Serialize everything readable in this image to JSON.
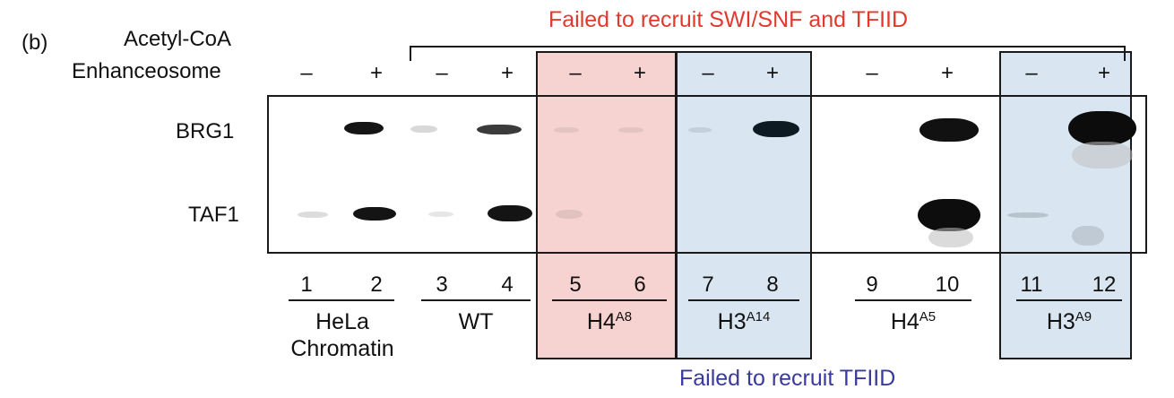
{
  "panel_label": "(b)",
  "row_labels": {
    "acetyl": "Acetyl-CoA",
    "enhanceosome": "Enhanceosome"
  },
  "signs": [
    "–",
    "+",
    "–",
    "+",
    "–",
    "+",
    "–",
    "+",
    "–",
    "+",
    "–",
    "+"
  ],
  "bands": {
    "brg1": "BRG1",
    "taf1": "TAF1"
  },
  "lanes": [
    "1",
    "2",
    "3",
    "4",
    "5",
    "6",
    "7",
    "8",
    "9",
    "10",
    "11",
    "12"
  ],
  "groups": [
    {
      "main": "HeLa",
      "sup": "",
      "line2": "Chromatin"
    },
    {
      "main": "WT",
      "sup": ""
    },
    {
      "main": "H4",
      "sup": "A8"
    },
    {
      "main": "H3",
      "sup": "A14"
    },
    {
      "main": "H4",
      "sup": "A5"
    },
    {
      "main": "H3",
      "sup": "A9"
    }
  ],
  "annotations": {
    "top": "Failed to recruit SWI/SNF and TFIID",
    "bottom": "Failed to recruit TFIID"
  },
  "colors": {
    "red_annotation": "#e03a2f",
    "blue_annotation": "#3a3a9e",
    "red_highlight": "#f6d3d0",
    "blue_highlight": "#d9e6f1"
  }
}
